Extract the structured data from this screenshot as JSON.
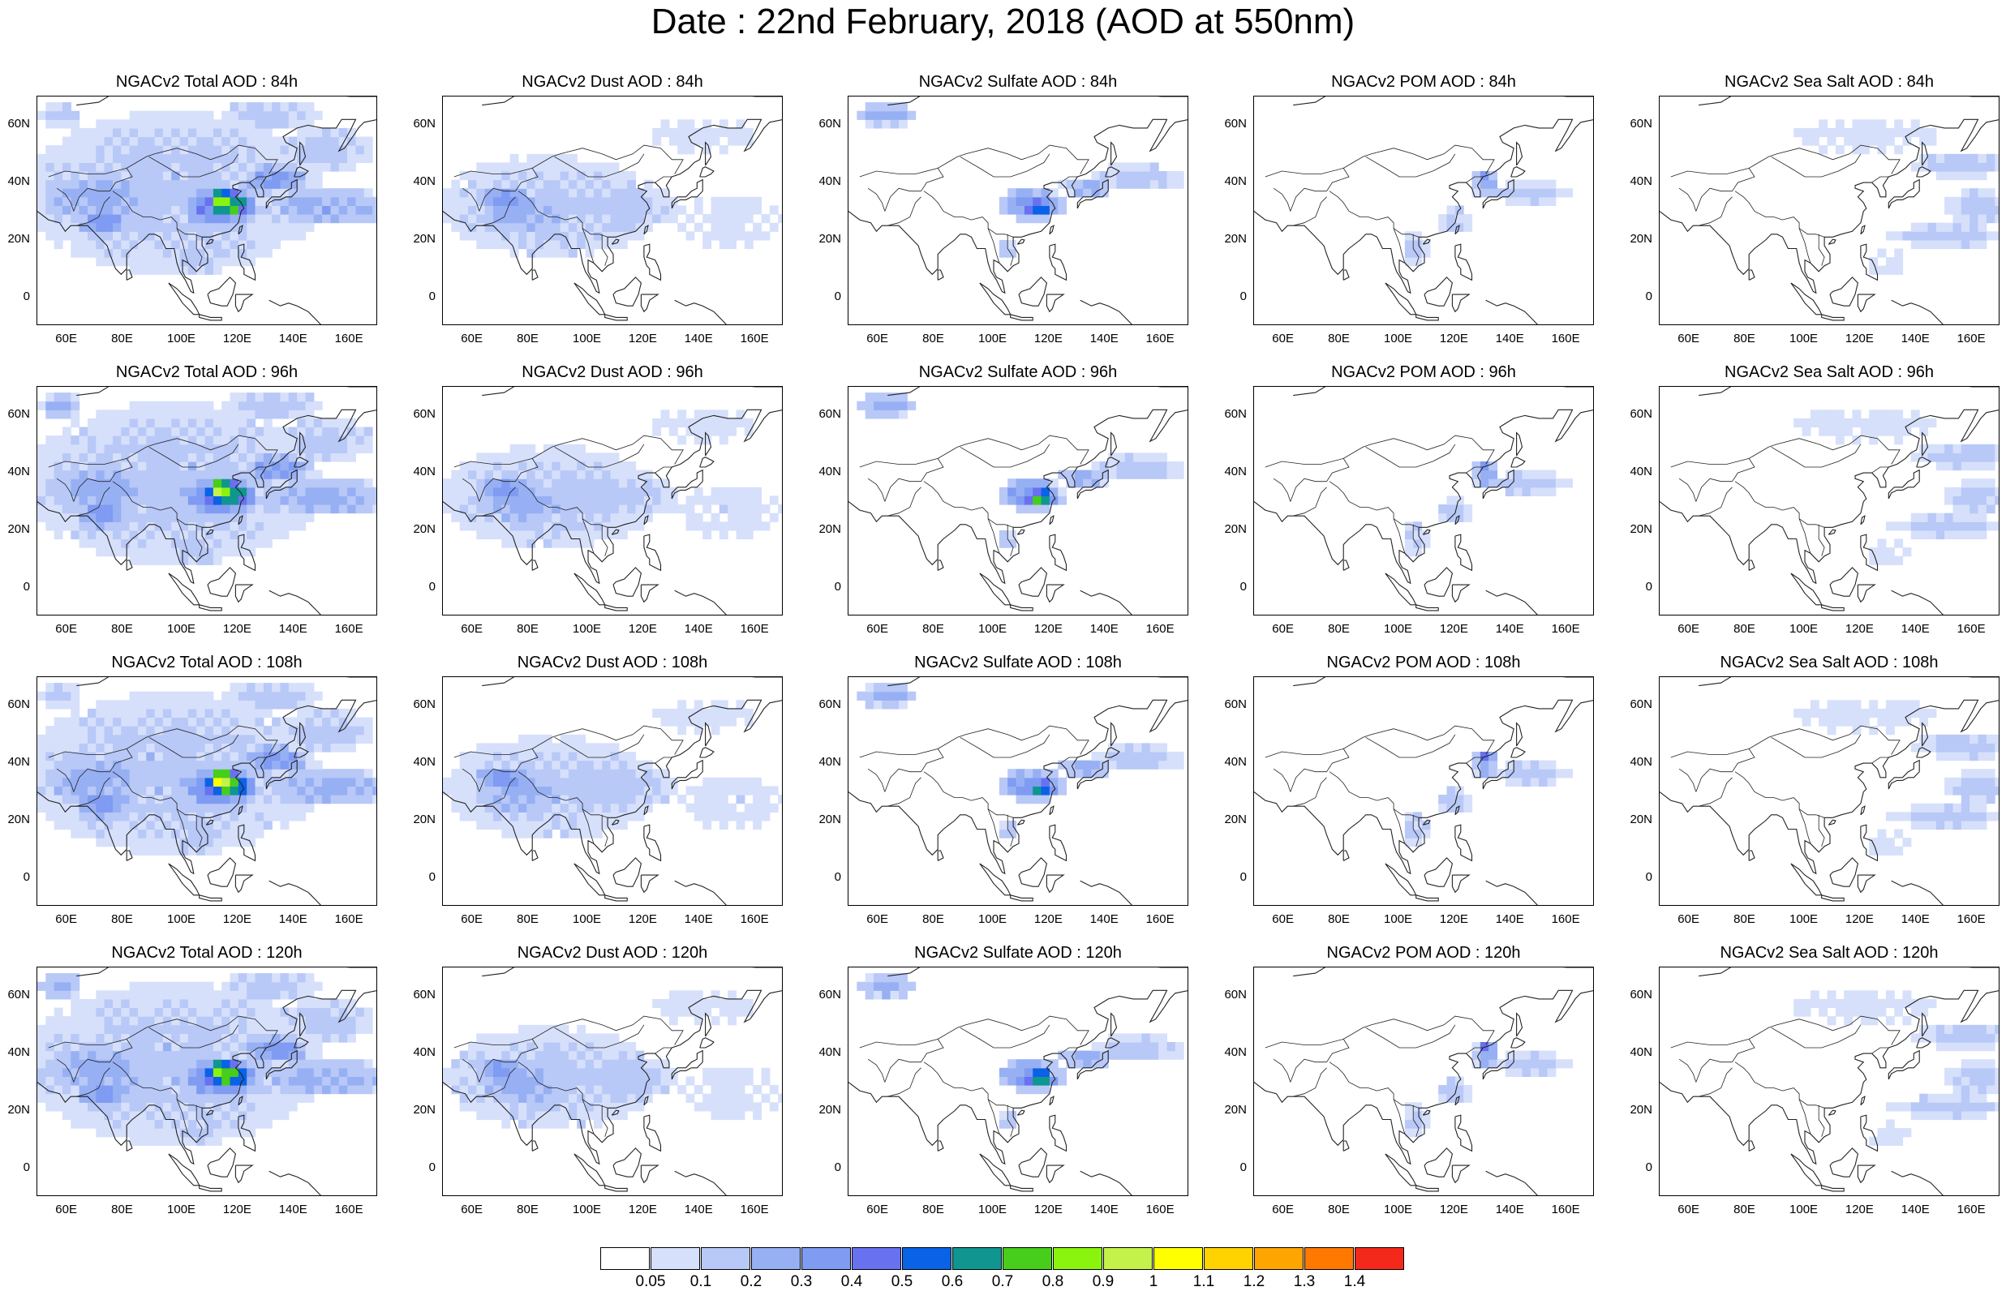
{
  "title": "Date : 22nd February, 2018 (AOD at 550nm)",
  "panels": [
    [
      "NGACv2 Total AOD : 84h",
      "NGACv2 Dust AOD : 84h",
      "NGACv2 Sulfate AOD : 84h",
      "NGACv2 POM AOD : 84h",
      "NGACv2 Sea Salt AOD : 84h"
    ],
    [
      "NGACv2 Total AOD : 96h",
      "NGACv2 Dust AOD : 96h",
      "NGACv2 Sulfate AOD : 96h",
      "NGACv2 POM AOD : 96h",
      "NGACv2 Sea Salt AOD : 96h"
    ],
    [
      "NGACv2 Total AOD : 108h",
      "NGACv2 Dust AOD : 108h",
      "NGACv2 Sulfate AOD : 108h",
      "NGACv2 POM AOD : 108h",
      "NGACv2 Sea Salt AOD : 108h"
    ],
    [
      "NGACv2 Total AOD : 120h",
      "NGACv2 Dust AOD : 120h",
      "NGACv2 Sulfate AOD : 120h",
      "NGACv2 POM AOD : 120h",
      "NGACv2 Sea Salt  AOD : 120h"
    ]
  ],
  "map": {
    "lon_range": [
      48,
      170
    ],
    "lat_range": [
      -10,
      70
    ],
    "lon_ticks": [
      {
        "v": 60,
        "t": "60E"
      },
      {
        "v": 80,
        "t": "80E"
      },
      {
        "v": 100,
        "t": "100E"
      },
      {
        "v": 120,
        "t": "120E"
      },
      {
        "v": 140,
        "t": "140E"
      },
      {
        "v": 160,
        "t": "160E"
      }
    ],
    "lat_ticks": [
      {
        "v": 60,
        "t": "60N"
      },
      {
        "v": 40,
        "t": "40N"
      },
      {
        "v": 20,
        "t": "20N"
      },
      {
        "v": 0,
        "t": "0"
      }
    ]
  },
  "colorbar": {
    "colors": [
      "#ffffff",
      "#d6e0fb",
      "#b8c8f7",
      "#97b0f4",
      "#7f9bf2",
      "#6872f0",
      "#0a62e6",
      "#0f9690",
      "#46ce1a",
      "#8bf40f",
      "#c5f24a",
      "#ffff00",
      "#ffd200",
      "#ffa500",
      "#ff7800",
      "#f5281c"
    ],
    "labels": [
      "0.05",
      "0.1",
      "0.2",
      "0.3",
      "0.4",
      "0.5",
      "0.6",
      "0.7",
      "0.8",
      "0.9",
      "1",
      "1.1",
      "1.2",
      "1.3",
      "1.4"
    ]
  }
}
